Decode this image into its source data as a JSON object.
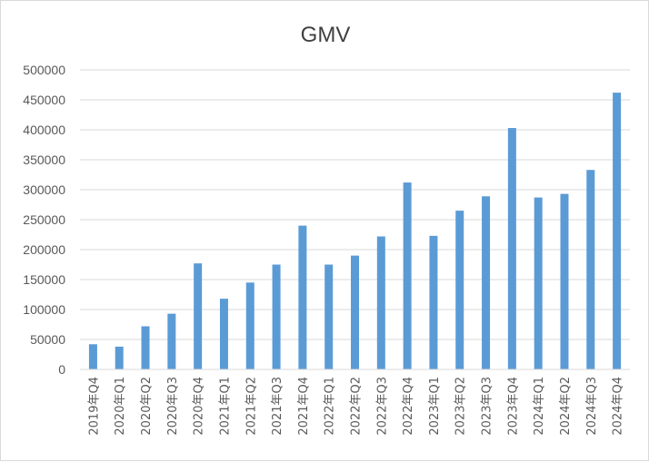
{
  "chart_data": {
    "type": "bar",
    "title": "GMV",
    "xlabel": "",
    "ylabel": "",
    "ylim": [
      0,
      500000
    ],
    "yticks": [
      0,
      50000,
      100000,
      150000,
      200000,
      250000,
      300000,
      350000,
      400000,
      450000,
      500000
    ],
    "grid": true,
    "legend": "none",
    "categories": [
      "2019年Q4",
      "2020年Q1",
      "2020年Q2",
      "2020年Q3",
      "2020年Q4",
      "2021年Q1",
      "2021年Q2",
      "2021年Q3",
      "2021年Q4",
      "2022年Q1",
      "2022年Q2",
      "2022年Q3",
      "2022年Q4",
      "2023年Q1",
      "2023年Q2",
      "2023年Q3",
      "2023年Q4",
      "2024年Q1",
      "2024年Q2",
      "2024年Q3",
      "2024年Q4"
    ],
    "values": [
      42000,
      38000,
      72000,
      93000,
      177000,
      118000,
      145000,
      175000,
      240000,
      175000,
      190000,
      222000,
      312000,
      223000,
      265000,
      289000,
      403000,
      287000,
      293000,
      333000,
      462000
    ],
    "colors": {
      "bar": "#5b9bd5",
      "grid": "#d9d9d9",
      "text": "#595959",
      "title": "#404040"
    }
  }
}
